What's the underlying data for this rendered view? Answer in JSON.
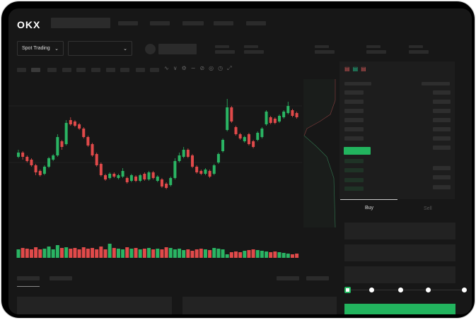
{
  "header": {
    "logo": "OKX"
  },
  "toolbar": {
    "market_select": "Spot Trading",
    "pair_select": "",
    "chevron": "⌄"
  },
  "trade": {
    "buy_tab": "Buy",
    "sell_tab": "Sell",
    "slider_level": 0
  },
  "colors": {
    "up": "#2ab463",
    "down": "#e04a4a",
    "accent": "#22b45e",
    "bg": "#171717"
  },
  "chart_data": {
    "type": "candlestick",
    "candles": [
      [
        90,
        96,
        100,
        88
      ],
      [
        96,
        90,
        98,
        86
      ],
      [
        90,
        84,
        92,
        82
      ],
      [
        86,
        78,
        88,
        76
      ],
      [
        78,
        68,
        80,
        64
      ],
      [
        70,
        64,
        72,
        62
      ],
      [
        66,
        76,
        78,
        64
      ],
      [
        76,
        88,
        90,
        74
      ],
      [
        86,
        92,
        94,
        84
      ],
      [
        92,
        118,
        122,
        90
      ],
      [
        112,
        104,
        114,
        100
      ],
      [
        108,
        138,
        142,
        106
      ],
      [
        142,
        136,
        146,
        134
      ],
      [
        140,
        134,
        142,
        132
      ],
      [
        136,
        130,
        138,
        128
      ],
      [
        130,
        118,
        132,
        116
      ],
      [
        118,
        106,
        120,
        104
      ],
      [
        108,
        92,
        110,
        90
      ],
      [
        94,
        78,
        96,
        76
      ],
      [
        80,
        64,
        82,
        62
      ],
      [
        64,
        58,
        66,
        56
      ],
      [
        60,
        66,
        68,
        58
      ],
      [
        66,
        62,
        68,
        60
      ],
      [
        60,
        64,
        66,
        58
      ],
      [
        62,
        70,
        74,
        60
      ],
      [
        60,
        54,
        62,
        52
      ],
      [
        56,
        64,
        66,
        54
      ],
      [
        62,
        56,
        64,
        54
      ],
      [
        56,
        64,
        66,
        54
      ],
      [
        66,
        58,
        68,
        56
      ],
      [
        58,
        68,
        70,
        56
      ],
      [
        68,
        60,
        70,
        58
      ],
      [
        56,
        62,
        64,
        54
      ],
      [
        58,
        48,
        60,
        46
      ],
      [
        52,
        46,
        54,
        44
      ],
      [
        50,
        60,
        62,
        48
      ],
      [
        60,
        84,
        88,
        58
      ],
      [
        84,
        92,
        96,
        82
      ],
      [
        90,
        100,
        104,
        88
      ],
      [
        100,
        90,
        102,
        88
      ],
      [
        92,
        76,
        94,
        74
      ],
      [
        76,
        68,
        78,
        66
      ],
      [
        70,
        66,
        72,
        64
      ],
      [
        66,
        72,
        74,
        64
      ],
      [
        70,
        62,
        72,
        60
      ],
      [
        66,
        78,
        80,
        64
      ],
      [
        82,
        94,
        96,
        80
      ],
      [
        98,
        114,
        116,
        96
      ],
      [
        128,
        160,
        172,
        126
      ],
      [
        160,
        140,
        162,
        138
      ],
      [
        132,
        122,
        134,
        120
      ],
      [
        122,
        116,
        124,
        114
      ],
      [
        112,
        118,
        120,
        110
      ],
      [
        122,
        108,
        124,
        106
      ],
      [
        112,
        104,
        114,
        102
      ],
      [
        114,
        124,
        126,
        112
      ],
      [
        118,
        130,
        132,
        116
      ],
      [
        136,
        154,
        156,
        134
      ],
      [
        146,
        138,
        148,
        136
      ],
      [
        144,
        138,
        146,
        136
      ],
      [
        140,
        148,
        150,
        138
      ],
      [
        146,
        154,
        156,
        144
      ],
      [
        152,
        162,
        168,
        150
      ],
      [
        156,
        148,
        158,
        146
      ],
      [
        152,
        146,
        154,
        144
      ]
    ],
    "volumes": [
      12,
      14,
      13,
      12,
      15,
      12,
      13,
      16,
      12,
      18,
      14,
      15,
      13,
      14,
      12,
      15,
      13,
      14,
      12,
      16,
      12,
      20,
      14,
      13,
      12,
      15,
      13,
      14,
      12,
      13,
      14,
      12,
      13,
      12,
      15,
      14,
      12,
      13,
      11,
      12,
      10,
      12,
      13,
      12,
      11,
      14,
      13,
      12,
      5,
      8,
      9,
      8,
      10,
      11,
      12,
      11,
      10,
      9,
      8,
      9,
      8,
      7,
      6,
      5,
      6
    ]
  }
}
